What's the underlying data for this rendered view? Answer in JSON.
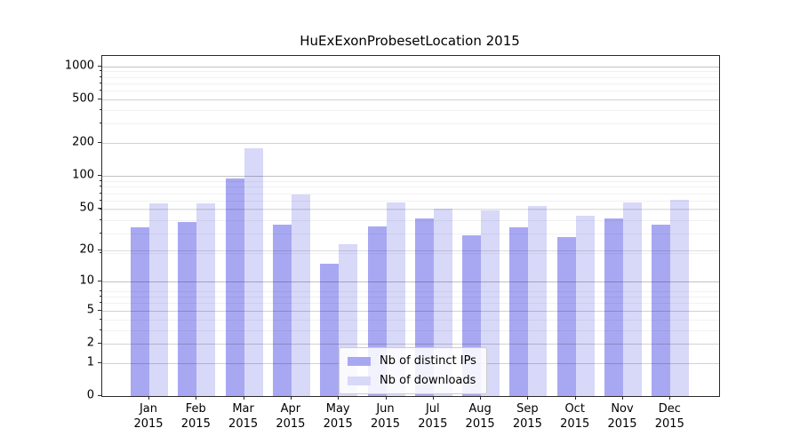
{
  "chart_data": {
    "type": "bar",
    "title": "HuExExonProbesetLocation 2015",
    "categories": [
      "Jan",
      "Feb",
      "Mar",
      "Apr",
      "May",
      "Jun",
      "Jul",
      "Aug",
      "Sep",
      "Oct",
      "Nov",
      "Dec"
    ],
    "x_tick_year": "2015",
    "series": [
      {
        "name": "Nb of distinct IPs",
        "color": "#a8a8f2",
        "values": [
          33,
          37,
          95,
          35,
          15,
          34,
          40,
          28,
          33,
          27,
          40,
          35
        ]
      },
      {
        "name": "Nb of downloads",
        "color": "#d8d8f9",
        "values": [
          56,
          56,
          178,
          67,
          23,
          57,
          50,
          48,
          53,
          43,
          57,
          60
        ]
      }
    ],
    "yticks": [
      0,
      1,
      2,
      5,
      10,
      20,
      50,
      100,
      200,
      500,
      1000
    ],
    "ylim": [
      0,
      1240
    ],
    "yscale": "log10(value+1)",
    "grid": true,
    "legend_position": "lower center",
    "xlabel": "",
    "ylabel": ""
  }
}
